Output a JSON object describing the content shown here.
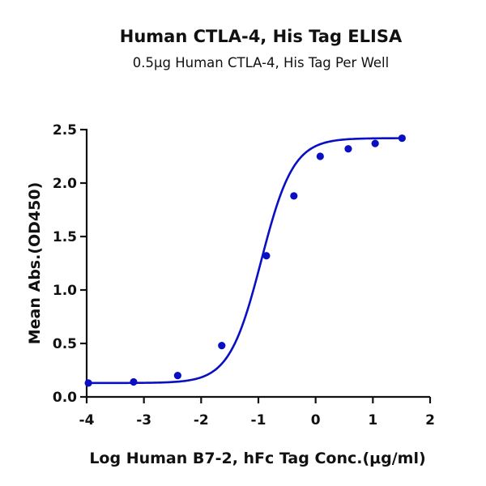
{
  "chart_data": {
    "type": "scatter",
    "title": "Human CTLA-4, His Tag ELISA",
    "subtitle": "0.5μg Human CTLA-4, His Tag Per Well",
    "xlabel": "Log Human B7-2, hFc Tag Conc.(μg/ml)",
    "ylabel": "Mean Abs.(OD450)",
    "xlim": [
      -4,
      2
    ],
    "ylim": [
      0,
      2.5
    ],
    "xticks": [
      -4,
      -3,
      -2,
      -1,
      0,
      1,
      2
    ],
    "yticks": [
      0.0,
      0.5,
      1.0,
      1.5,
      2.0,
      2.5
    ],
    "xtick_labels": [
      "-4",
      "-3",
      "-2",
      "-1",
      "0",
      "1",
      "2"
    ],
    "ytick_labels": [
      "0.0",
      "0.5",
      "1.0",
      "1.5",
      "2.0",
      "2.5"
    ],
    "grid": false,
    "legend": null,
    "fit": "4-parameter logistic (sigmoidal) curve",
    "series": [
      {
        "name": "Human CTLA-4, His Tag",
        "color": "#0a0fc4",
        "x": [
          -3.97,
          -3.18,
          -2.41,
          -1.64,
          -0.86,
          -0.38,
          0.08,
          0.57,
          1.04,
          1.51
        ],
        "y": [
          0.13,
          0.14,
          0.2,
          0.48,
          1.32,
          1.88,
          2.25,
          2.32,
          2.37,
          2.42
        ]
      }
    ]
  }
}
